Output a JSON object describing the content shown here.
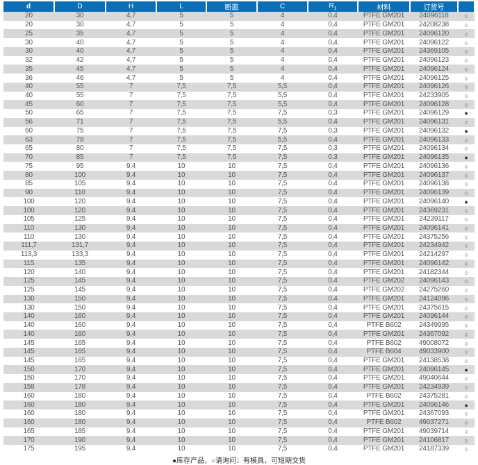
{
  "header": {
    "d": "d",
    "D": "D",
    "H": "H",
    "L": "L",
    "section": "断面",
    "C": "C",
    "R": "R",
    "R_sub": "1",
    "material": "材料",
    "order_no": "订货号",
    "status": ""
  },
  "rows": [
    [
      "20",
      "30",
      "4,7",
      "5",
      "5",
      "4",
      "0,4",
      "PTFE GM201",
      "24096118",
      "○"
    ],
    [
      "20",
      "30",
      "4,7",
      "5",
      "5",
      "4",
      "0,4",
      "PTFE GM201",
      "24208238",
      "○"
    ],
    [
      "25",
      "35",
      "4,7",
      "5",
      "5",
      "4",
      "0,4",
      "PTFE GM201",
      "24096120",
      "○"
    ],
    [
      "30",
      "40",
      "4,7",
      "5",
      "5",
      "4",
      "0,4",
      "PTFE GM201",
      "24096122",
      "○"
    ],
    [
      "30",
      "40",
      "4,7",
      "5",
      "5",
      "4",
      "0,4",
      "PTFE GM201",
      "24369105",
      "○"
    ],
    [
      "32",
      "42",
      "4,7",
      "5",
      "5",
      "4",
      "0,4",
      "PTFE GM201",
      "24096123",
      "○"
    ],
    [
      "35",
      "45",
      "4,7",
      "5",
      "5",
      "4",
      "0,4",
      "PTFE GM201",
      "24096124",
      "○"
    ],
    [
      "36",
      "46",
      "4,7",
      "5",
      "5",
      "4",
      "0,4",
      "PTFE GM201",
      "24096125",
      "○"
    ],
    [
      "40",
      "55",
      "7",
      "7,5",
      "7,5",
      "5,5",
      "0,4",
      "PTFE GM201",
      "24096126",
      "○"
    ],
    [
      "40",
      "55",
      "7",
      "7,5",
      "7,5",
      "5,5",
      "0,4",
      "PTFE GM201",
      "24233905",
      "○"
    ],
    [
      "45",
      "60",
      "7",
      "7,5",
      "7,5",
      "5,5",
      "0,4",
      "PTFE GM201",
      "24096128",
      "○"
    ],
    [
      "50",
      "65",
      "7",
      "7,5",
      "7,5",
      "7,5",
      "0,3",
      "PTFE GM201",
      "24096129",
      "●"
    ],
    [
      "56",
      "71",
      "7",
      "7,5",
      "7,5",
      "5,5",
      "0,4",
      "PTFE GM201",
      "24096131",
      "○"
    ],
    [
      "60",
      "75",
      "7",
      "7,5",
      "7,5",
      "7,5",
      "0,3",
      "PTFE GM201",
      "24096132",
      "●"
    ],
    [
      "63",
      "78",
      "7",
      "7,5",
      "7,5",
      "5,5",
      "0,4",
      "PTFE GM201",
      "24096133",
      "○"
    ],
    [
      "65",
      "80",
      "7",
      "7,5",
      "7,5",
      "7,5",
      "0,3",
      "PTFE GM201",
      "24096134",
      "○"
    ],
    [
      "70",
      "85",
      "7",
      "7,5",
      "7,5",
      "7,5",
      "0,3",
      "PTFE GM201",
      "24096135",
      "●"
    ],
    [
      "75",
      "95",
      "9,4",
      "10",
      "10",
      "7,5",
      "0,4",
      "PTFE GM201",
      "24096136",
      "○"
    ],
    [
      "80",
      "100",
      "9,4",
      "10",
      "10",
      "7,5",
      "0,4",
      "PTFE GM201",
      "24096137",
      "○"
    ],
    [
      "85",
      "105",
      "9,4",
      "10",
      "10",
      "7,5",
      "0,4",
      "PTFE GM201",
      "24096138",
      "○"
    ],
    [
      "90",
      "110",
      "9,4",
      "10",
      "10",
      "7,5",
      "0,4",
      "PTFE GM201",
      "24096139",
      "○"
    ],
    [
      "100",
      "120",
      "9,4",
      "10",
      "10",
      "7,5",
      "0,4",
      "PTFE GM201",
      "24096140",
      "●"
    ],
    [
      "100",
      "120",
      "9,4",
      "10",
      "10",
      "7,5",
      "0,4",
      "PTFE GM201",
      "24369231",
      "○"
    ],
    [
      "105",
      "125",
      "9,4",
      "10",
      "10",
      "7,5",
      "0,4",
      "PTFE GM201",
      "24239117",
      "○"
    ],
    [
      "110",
      "130",
      "9,4",
      "10",
      "10",
      "7,5",
      "0,4",
      "PTFE GM201",
      "24096141",
      "○"
    ],
    [
      "110",
      "130",
      "9,4",
      "10",
      "10",
      "7,5",
      "0,4",
      "PTFE GM201",
      "24375256",
      "○"
    ],
    [
      "111,7",
      "131,7",
      "9,4",
      "10",
      "10",
      "7,5",
      "0,4",
      "PTFE GM201",
      "24234942",
      "○"
    ],
    [
      "113,3",
      "133,3",
      "9,4",
      "10",
      "10",
      "7,5",
      "0,4",
      "PTFE GM201",
      "24214297",
      "○"
    ],
    [
      "115",
      "135",
      "9,4",
      "10",
      "10",
      "7,5",
      "0,4",
      "PTFE GM201",
      "24096142",
      "○"
    ],
    [
      "120",
      "140",
      "9,4",
      "10",
      "10",
      "7,5",
      "0,4",
      "PTFE GM201",
      "24182344",
      "○"
    ],
    [
      "125",
      "145",
      "9,4",
      "10",
      "10",
      "7,5",
      "0,4",
      "PTFE GM202",
      "24096143",
      "○"
    ],
    [
      "125",
      "145",
      "9,4",
      "10",
      "10",
      "7,5",
      "0,4",
      "PTFE GM202",
      "24275260",
      "○"
    ],
    [
      "130",
      "150",
      "9,4",
      "10",
      "10",
      "7,5",
      "0,4",
      "PTFE GM201",
      "24124096",
      "○"
    ],
    [
      "130",
      "150",
      "9,4",
      "10",
      "10",
      "7,5",
      "0,4",
      "PTFE GM201",
      "24375615",
      "○"
    ],
    [
      "140",
      "160",
      "9,4",
      "10",
      "10",
      "7,5",
      "0,4",
      "PTFE GM201",
      "24096144",
      "○"
    ],
    [
      "140",
      "160",
      "9,4",
      "10",
      "10",
      "7,5",
      "0,4",
      "PTFE B602",
      "24349995",
      "○"
    ],
    [
      "140",
      "160",
      "9,4",
      "10",
      "10",
      "7,5",
      "0,4",
      "PTFE GM201",
      "24367092",
      "○"
    ],
    [
      "145",
      "165",
      "9,4",
      "10",
      "10",
      "7,5",
      "0,4",
      "PTFE B602",
      "49008072",
      "○"
    ],
    [
      "145",
      "165",
      "9,4",
      "10",
      "10",
      "7,5",
      "0,4",
      "PTFE B604",
      "49033900",
      "○"
    ],
    [
      "145",
      "165",
      "9,4",
      "10",
      "10",
      "7,5",
      "0,4",
      "PTFE GM201",
      "24138538",
      "○"
    ],
    [
      "150",
      "170",
      "9,4",
      "10",
      "10",
      "7,5",
      "0,4",
      "PTFE GM201",
      "24096145",
      "●"
    ],
    [
      "150",
      "170",
      "9,4",
      "10",
      "10",
      "7,5",
      "0,4",
      "PTFE GM201",
      "49040644",
      "○"
    ],
    [
      "158",
      "178",
      "9,4",
      "10",
      "10",
      "7,5",
      "0,4",
      "PTFE GM201",
      "24234939",
      "○"
    ],
    [
      "160",
      "180",
      "9,4",
      "10",
      "10",
      "7,5",
      "0,4",
      "PTFE B602",
      "24375281",
      "○"
    ],
    [
      "160",
      "180",
      "9,4",
      "10",
      "10",
      "7,5",
      "0,4",
      "PTFE GM201",
      "24096146",
      "●"
    ],
    [
      "160",
      "180",
      "9,4",
      "10",
      "10",
      "7,5",
      "0,4",
      "PTFE GM201",
      "24367093",
      "○"
    ],
    [
      "160",
      "180",
      "9,4",
      "10",
      "10",
      "7,5",
      "0,4",
      "PTFE B602",
      "49037271",
      "○"
    ],
    [
      "165",
      "185",
      "9,4",
      "10",
      "10",
      "7,5",
      "0,4",
      "PTFE GM201",
      "49039714",
      "○"
    ],
    [
      "170",
      "190",
      "9,4",
      "10",
      "10",
      "7,5",
      "0,4",
      "PTFE GM201",
      "24106817",
      "○"
    ],
    [
      "175",
      "195",
      "9,4",
      "10",
      "10",
      "7,5",
      "0,4",
      "PTFE GM201",
      "24187339",
      "○"
    ]
  ],
  "legend": "●库存产品，○请询问：有模具，可短期交货",
  "colors": {
    "header_bg": "#0a6fb8",
    "stripe": "#d9d9d9",
    "text": "#555555"
  }
}
